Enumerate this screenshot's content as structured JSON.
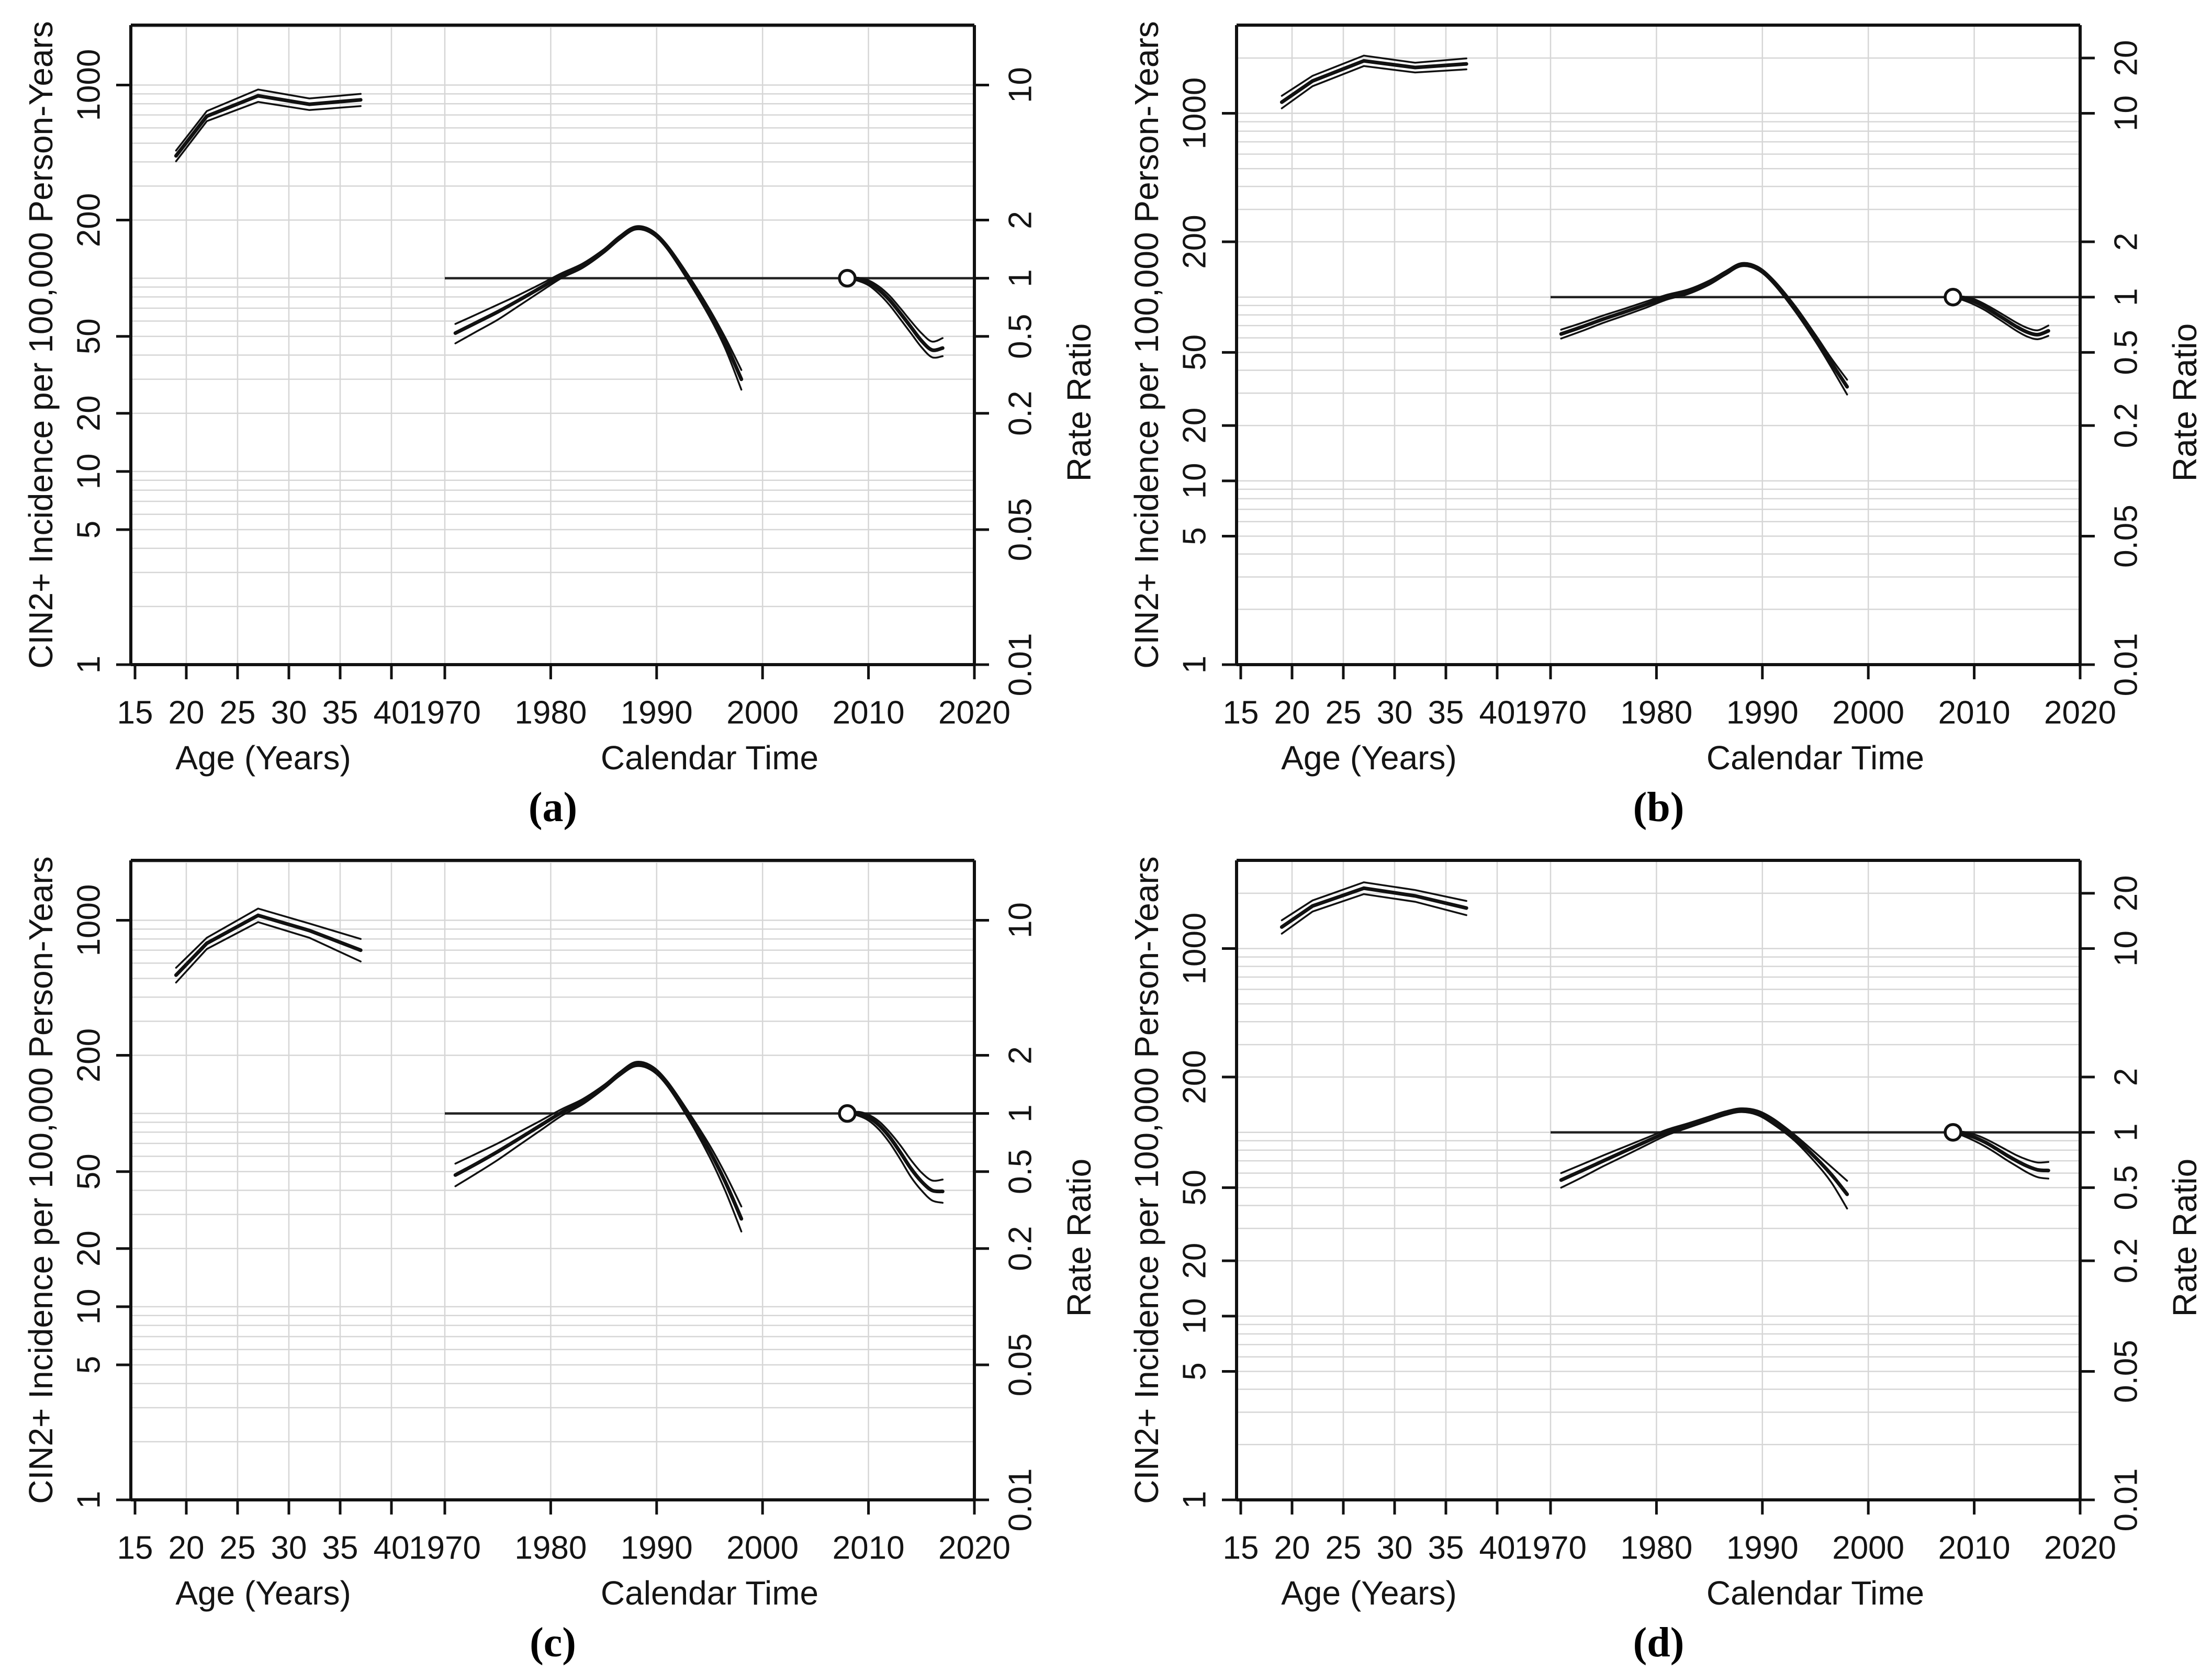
{
  "colors": {
    "background": "#ffffff",
    "line": "#111111",
    "grid": "#d6d6d6",
    "reference": "#222222",
    "marker_fill": "#ffffff"
  },
  "chart_data": [
    {
      "panel_label": "(a)",
      "type": "line",
      "left_axis": {
        "label": "CIN2+ Incidence per 100,000 Person-Years",
        "ticks": [
          1000,
          200,
          50,
          20,
          10,
          5,
          1
        ],
        "min": 1,
        "max": 2042,
        "scale": "log"
      },
      "right_axis": {
        "label": "Rate Ratio",
        "ticks": [
          10,
          2,
          1,
          0.5,
          0.2,
          0.05,
          0.01
        ],
        "min": 0.01,
        "max": 20.4,
        "scale": "log"
      },
      "x_axis": {
        "age_label": "Age (Years)",
        "age_ticks": [
          15,
          20,
          25,
          30,
          35,
          40
        ],
        "time_label": "Calendar Time",
        "time_ticks": [
          1970,
          1980,
          1990,
          2000,
          2010,
          2020
        ]
      },
      "reference": {
        "line_rate_ratio": 1,
        "line_from_year": 1970,
        "line_to_year": 2020,
        "point_year": 2008,
        "point_rate_ratio": 1
      },
      "series": {
        "age_incidence": {
          "x": [
            19,
            22,
            27,
            32,
            37
          ],
          "center": [
            430,
            690,
            880,
            795,
            838
          ],
          "upper": [
            458,
            733,
            948,
            852,
            900
          ],
          "lower": [
            403,
            650,
            818,
            742,
            778
          ]
        },
        "calendar_rate_ratio": {
          "x": [
            1971,
            1973,
            1975,
            1977,
            1979,
            1981,
            1983,
            1985,
            1986.5,
            1988,
            1989.5,
            1991,
            1993,
            1995,
            1996.5,
            1998
          ],
          "center": [
            0.52,
            0.59,
            0.67,
            0.77,
            0.89,
            1.03,
            1.16,
            1.38,
            1.62,
            1.82,
            1.74,
            1.45,
            1.0,
            0.66,
            0.46,
            0.3
          ],
          "upper": [
            0.58,
            0.65,
            0.73,
            0.82,
            0.93,
            1.06,
            1.19,
            1.41,
            1.655,
            1.855,
            1.775,
            1.485,
            1.035,
            0.69,
            0.49,
            0.335
          ],
          "lower": [
            0.46,
            0.53,
            0.61,
            0.72,
            0.85,
            1.0,
            1.13,
            1.35,
            1.585,
            1.785,
            1.705,
            1.415,
            0.965,
            0.63,
            0.43,
            0.265
          ]
        },
        "recent_period_rate_ratio": {
          "x": [
            2008,
            2009,
            2010,
            2011,
            2012,
            2013,
            2014,
            2015,
            2016,
            2017
          ],
          "center": [
            1.0,
            0.99,
            0.95,
            0.87,
            0.77,
            0.66,
            0.56,
            0.475,
            0.425,
            0.435
          ],
          "upper": [
            1.0,
            1.005,
            0.975,
            0.905,
            0.81,
            0.7,
            0.6,
            0.52,
            0.47,
            0.49
          ],
          "lower": [
            1.0,
            0.97,
            0.92,
            0.83,
            0.725,
            0.615,
            0.52,
            0.44,
            0.39,
            0.395
          ]
        }
      }
    },
    {
      "panel_label": "(b)",
      "type": "line",
      "left_axis": {
        "label": "CIN2+ Incidence per 100,000 Person-Years",
        "ticks": [
          1000,
          200,
          50,
          20,
          10,
          5,
          1
        ],
        "min": 1,
        "max": 3020,
        "scale": "log"
      },
      "right_axis": {
        "label": "Rate Ratio",
        "ticks": [
          20,
          10,
          2,
          1,
          0.5,
          0.2,
          0.05,
          0.01
        ],
        "min": 0.01,
        "max": 30.2,
        "scale": "log"
      },
      "x_axis": {
        "age_label": "Age (Years)",
        "age_ticks": [
          15,
          20,
          25,
          30,
          35,
          40
        ],
        "time_label": "Calendar Time",
        "time_ticks": [
          1970,
          1980,
          1990,
          2000,
          2010,
          2020
        ]
      },
      "reference": {
        "line_rate_ratio": 1,
        "line_from_year": 1970,
        "line_to_year": 2020,
        "point_year": 2008,
        "point_rate_ratio": 1
      },
      "series": {
        "age_incidence": {
          "x": [
            19,
            22,
            27,
            32,
            37
          ],
          "center": [
            1150,
            1500,
            1930,
            1775,
            1858
          ],
          "upper": [
            1245,
            1600,
            2060,
            1885,
            1990
          ],
          "lower": [
            1065,
            1405,
            1808,
            1668,
            1735
          ]
        },
        "calendar_rate_ratio": {
          "x": [
            1971,
            1973,
            1975,
            1977,
            1979,
            1981,
            1983,
            1985,
            1986.5,
            1988,
            1989.5,
            1991,
            1993,
            1995,
            1996.5,
            1998
          ],
          "center": [
            0.63,
            0.69,
            0.76,
            0.83,
            0.91,
            1.0,
            1.07,
            1.2,
            1.35,
            1.5,
            1.44,
            1.22,
            0.88,
            0.6,
            0.44,
            0.325
          ],
          "upper": [
            0.665,
            0.725,
            0.795,
            0.865,
            0.945,
            1.03,
            1.1,
            1.23,
            1.38,
            1.53,
            1.47,
            1.25,
            0.91,
            0.625,
            0.465,
            0.355
          ],
          "lower": [
            0.595,
            0.655,
            0.725,
            0.795,
            0.875,
            0.97,
            1.04,
            1.17,
            1.32,
            1.47,
            1.41,
            1.19,
            0.85,
            0.575,
            0.415,
            0.295
          ]
        },
        "recent_period_rate_ratio": {
          "x": [
            2008,
            2009,
            2010,
            2011,
            2012,
            2013,
            2014,
            2015,
            2016,
            2017
          ],
          "center": [
            1.0,
            0.985,
            0.945,
            0.885,
            0.815,
            0.75,
            0.69,
            0.645,
            0.625,
            0.655
          ],
          "upper": [
            1.0,
            1.005,
            0.975,
            0.915,
            0.85,
            0.785,
            0.725,
            0.68,
            0.66,
            0.7
          ],
          "lower": [
            1.0,
            0.96,
            0.91,
            0.85,
            0.78,
            0.715,
            0.655,
            0.61,
            0.59,
            0.615
          ]
        }
      }
    },
    {
      "panel_label": "(c)",
      "type": "line",
      "left_axis": {
        "label": "CIN2+ Incidence per 100,000 Person-Years",
        "ticks": [
          1000,
          200,
          50,
          20,
          10,
          5,
          1
        ],
        "min": 1,
        "max": 2042,
        "scale": "log"
      },
      "right_axis": {
        "label": "Rate Ratio",
        "ticks": [
          10,
          2,
          1,
          0.5,
          0.2,
          0.05,
          0.01
        ],
        "min": 0.01,
        "max": 20.4,
        "scale": "log"
      },
      "x_axis": {
        "age_label": "Age (Years)",
        "age_ticks": [
          15,
          20,
          25,
          30,
          35,
          40
        ],
        "time_label": "Calendar Time",
        "time_ticks": [
          1970,
          1980,
          1990,
          2000,
          2010,
          2020
        ]
      },
      "reference": {
        "line_rate_ratio": 1,
        "line_from_year": 1970,
        "line_to_year": 2020,
        "point_year": 2008,
        "point_rate_ratio": 1
      },
      "series": {
        "age_incidence": {
          "x": [
            19,
            22,
            27,
            32,
            37
          ],
          "center": [
            520,
            760,
            1060,
            885,
            700
          ],
          "upper": [
            568,
            812,
            1150,
            962,
            800
          ],
          "lower": [
            476,
            710,
            978,
            812,
            612
          ]
        },
        "calendar_rate_ratio": {
          "x": [
            1971,
            1973,
            1975,
            1977,
            1979,
            1981,
            1983,
            1985,
            1986.5,
            1988,
            1989.5,
            1991,
            1993,
            1995,
            1996.5,
            1998
          ],
          "center": [
            0.48,
            0.55,
            0.635,
            0.74,
            0.865,
            1.01,
            1.15,
            1.37,
            1.6,
            1.8,
            1.72,
            1.43,
            0.98,
            0.64,
            0.44,
            0.285
          ],
          "upper": [
            0.55,
            0.62,
            0.7,
            0.8,
            0.915,
            1.05,
            1.185,
            1.4,
            1.635,
            1.845,
            1.765,
            1.47,
            1.02,
            0.685,
            0.485,
            0.33
          ],
          "lower": [
            0.42,
            0.49,
            0.575,
            0.685,
            0.815,
            0.97,
            1.115,
            1.34,
            1.565,
            1.755,
            1.675,
            1.39,
            0.94,
            0.595,
            0.395,
            0.245
          ]
        },
        "recent_period_rate_ratio": {
          "x": [
            2008,
            2009,
            2010,
            2011,
            2012,
            2013,
            2014,
            2015,
            2016,
            2017
          ],
          "center": [
            1.0,
            1.0,
            0.955,
            0.87,
            0.755,
            0.63,
            0.52,
            0.445,
            0.4,
            0.395
          ],
          "upper": [
            1.0,
            1.02,
            0.985,
            0.91,
            0.8,
            0.685,
            0.575,
            0.495,
            0.45,
            0.455
          ],
          "lower": [
            1.0,
            0.975,
            0.92,
            0.825,
            0.705,
            0.58,
            0.47,
            0.4,
            0.355,
            0.345
          ]
        }
      }
    },
    {
      "panel_label": "(d)",
      "type": "line",
      "left_axis": {
        "label": "CIN2+ Incidence per 100,000 Person-Years",
        "ticks": [
          1000,
          200,
          50,
          20,
          10,
          5,
          1
        ],
        "min": 1,
        "max": 3020,
        "scale": "log"
      },
      "right_axis": {
        "label": "Rate Ratio",
        "ticks": [
          20,
          10,
          2,
          1,
          0.5,
          0.2,
          0.05,
          0.01
        ],
        "min": 0.01,
        "max": 30.2,
        "scale": "log"
      },
      "x_axis": {
        "age_label": "Age (Years)",
        "age_ticks": [
          15,
          20,
          25,
          30,
          35,
          40
        ],
        "time_label": "Calendar Time",
        "time_ticks": [
          1970,
          1980,
          1990,
          2000,
          2010,
          2020
        ]
      },
      "reference": {
        "line_rate_ratio": 1,
        "line_from_year": 1970,
        "line_to_year": 2020,
        "point_year": 2008,
        "point_rate_ratio": 1
      },
      "series": {
        "age_incidence": {
          "x": [
            19,
            22,
            27,
            32,
            37
          ],
          "center": [
            1310,
            1705,
            2130,
            1935,
            1662
          ],
          "upper": [
            1425,
            1828,
            2295,
            2082,
            1815
          ],
          "lower": [
            1205,
            1590,
            1978,
            1798,
            1520
          ]
        },
        "calendar_rate_ratio": {
          "x": [
            1971,
            1973,
            1975,
            1977,
            1979,
            1981,
            1983,
            1985,
            1986.5,
            1988,
            1989.5,
            1991,
            1993,
            1995,
            1996.5,
            1998
          ],
          "center": [
            0.55,
            0.62,
            0.7,
            0.79,
            0.89,
            1.0,
            1.09,
            1.19,
            1.27,
            1.32,
            1.28,
            1.15,
            0.94,
            0.73,
            0.59,
            0.46
          ],
          "upper": [
            0.6,
            0.67,
            0.75,
            0.835,
            0.93,
            1.035,
            1.12,
            1.22,
            1.3,
            1.35,
            1.315,
            1.19,
            0.975,
            0.775,
            0.65,
            0.545
          ],
          "lower": [
            0.5,
            0.57,
            0.655,
            0.745,
            0.85,
            0.965,
            1.06,
            1.16,
            1.24,
            1.29,
            1.245,
            1.11,
            0.905,
            0.685,
            0.535,
            0.385
          ]
        },
        "recent_period_rate_ratio": {
          "x": [
            2008,
            2009,
            2010,
            2011,
            2012,
            2013,
            2014,
            2015,
            2016,
            2017
          ],
          "center": [
            1.0,
            0.98,
            0.94,
            0.885,
            0.82,
            0.755,
            0.7,
            0.655,
            0.625,
            0.62
          ],
          "upper": [
            1.0,
            1.005,
            0.975,
            0.925,
            0.865,
            0.805,
            0.75,
            0.71,
            0.685,
            0.69
          ],
          "lower": [
            1.0,
            0.955,
            0.9,
            0.84,
            0.775,
            0.71,
            0.655,
            0.605,
            0.57,
            0.56
          ]
        }
      }
    }
  ]
}
